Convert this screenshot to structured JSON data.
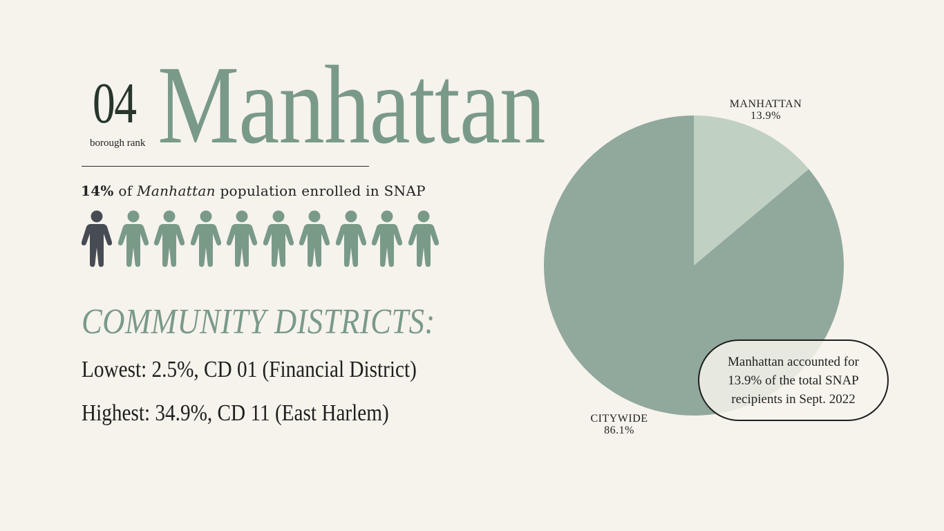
{
  "header": {
    "rank_number": "04",
    "rank_label": "borough rank",
    "borough": "Manhattan"
  },
  "enrollment": {
    "percent": "14%",
    "text_of": " of ",
    "borough": "Manhattan",
    "text_rest": " population enrolled in SNAP",
    "icons_total": 10,
    "icons_highlighted": 1
  },
  "community_districts": {
    "heading": "COMMUNITY DISTRICTS:",
    "lowest_label": "Lowest",
    "lowest_value": ": 2.5%, CD 01 (Financial District)",
    "highest_label": "Highest",
    "highest_value": ": 34.9%, CD 11 (East Harlem)"
  },
  "colors": {
    "accent": "#7a9a88",
    "highlight_person": "#474c54",
    "pie_manhattan": "#c0d0c2",
    "pie_citywide": "#91a89d"
  },
  "chart_data": {
    "type": "pie",
    "slices": [
      {
        "name": "MANHATTAN",
        "value": 13.9,
        "label": "13.9%"
      },
      {
        "name": "CITYWIDE",
        "value": 86.1,
        "label": "86.1%"
      }
    ],
    "callout": "Manhattan accounted for 13.9% of the total SNAP recipients in Sept. 2022"
  }
}
